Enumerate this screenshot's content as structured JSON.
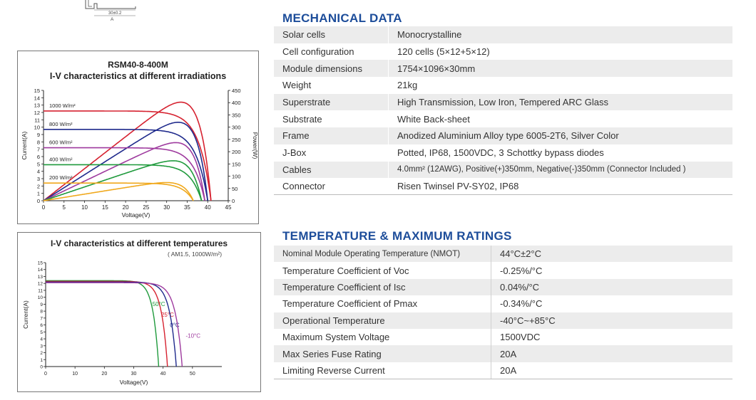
{
  "drawing": {
    "dimension": "30±0.2",
    "label": "A"
  },
  "mechanical": {
    "title": "MECHANICAL DATA",
    "rows": [
      {
        "key": "Solar cells",
        "value": "Monocrystalline"
      },
      {
        "key": "Cell configuration",
        "value": "120 cells (5×12+5×12)"
      },
      {
        "key": "Module dimensions",
        "value": "1754×1096×30mm"
      },
      {
        "key": "Weight",
        "value": "21kg"
      },
      {
        "key": "Superstrate",
        "value": "High Transmission, Low Iron, Tempered ARC Glass"
      },
      {
        "key": "Substrate",
        "value": "White Back-sheet"
      },
      {
        "key": "Frame",
        "value": "Anodized Aluminium Alloy type 6005-2T6, Silver Color"
      },
      {
        "key": "J-Box",
        "value": "Potted, IP68, 1500VDC, 3 Schottky bypass diodes"
      },
      {
        "key": "Cables",
        "value": "4.0mm² (12AWG), Positive(+)350mm, Negative(-)350mm (Connector Included )"
      },
      {
        "key": "Connector",
        "value": "Risen Twinsel PV-SY02, IP68"
      }
    ]
  },
  "temperature": {
    "title": "TEMPERATURE & MAXIMUM RATINGS",
    "rows": [
      {
        "key": "Nominal Module Operating Temperature (NMOT)",
        "value": "44°C±2°C"
      },
      {
        "key": "Temperature Coefficient of Voc",
        "value": "-0.25%/°C"
      },
      {
        "key": "Temperature Coefficient of Isc",
        "value": "0.04%/°C"
      },
      {
        "key": "Temperature Coefficient of Pmax",
        "value": "-0.34%/°C"
      },
      {
        "key": "Operational Temperature",
        "value": "-40°C~+85°C"
      },
      {
        "key": "Maximum System Voltage",
        "value": "1500VDC"
      },
      {
        "key": "Max Series Fuse Rating",
        "value": "20A"
      },
      {
        "key": "Limiting Reverse Current",
        "value": "20A"
      }
    ]
  },
  "chart_data": [
    {
      "type": "line",
      "title": "RSM40-8-400M",
      "subtitle": "I-V characteristics at different irradiations",
      "xlabel": "Voltage(V)",
      "ylabel": "Current(A)",
      "y2label": "Power(W)",
      "xlim": [
        0,
        45
      ],
      "ylim": [
        0,
        15
      ],
      "y2lim": [
        0,
        450
      ],
      "xticks": [
        0,
        5,
        10,
        15,
        20,
        25,
        30,
        35,
        40,
        45
      ],
      "yticks": [
        0,
        1,
        2,
        3,
        4,
        5,
        6,
        7,
        8,
        9,
        10,
        11,
        12,
        13,
        14,
        15
      ],
      "y2ticks": [
        0,
        50,
        100,
        150,
        200,
        250,
        300,
        350,
        400,
        450
      ],
      "series": [
        {
          "name": "1000 W/m²",
          "color": "#d62230",
          "isc": 12.2,
          "voc": 40.8,
          "pmax": 402
        },
        {
          "name": "800 W/m²",
          "color": "#1f2a8c",
          "isc": 9.7,
          "voc": 40.0,
          "pmax": 320
        },
        {
          "name": "600 W/m²",
          "color": "#9e3a9e",
          "isc": 7.2,
          "voc": 39.3,
          "pmax": 237
        },
        {
          "name": "400 W/m²",
          "color": "#1f9a3c",
          "isc": 4.9,
          "voc": 38.5,
          "pmax": 163
        },
        {
          "name": "200 W/m²",
          "color": "#f0a81c",
          "isc": 2.4,
          "voc": 36.5,
          "pmax": 74
        }
      ]
    },
    {
      "type": "line",
      "title": "I-V characteristics at different temperatures",
      "subtitle": "( AM1.5, 1000W/m²)",
      "xlabel": "Voltage(V)",
      "ylabel": "Current(A)",
      "xlim": [
        0,
        60
      ],
      "ylim": [
        0,
        15
      ],
      "xticks": [
        0,
        10,
        20,
        30,
        40,
        50
      ],
      "yticks": [
        0,
        1,
        2,
        3,
        4,
        5,
        6,
        7,
        8,
        9,
        10,
        11,
        12,
        13,
        14,
        15
      ],
      "series": [
        {
          "name": "50°C",
          "color": "#1f9a3c",
          "isc": 12.4,
          "voc": 38.5
        },
        {
          "name": "25°C",
          "color": "#d62230",
          "isc": 12.3,
          "voc": 41.5
        },
        {
          "name": "0°C",
          "color": "#1f2a8c",
          "isc": 12.2,
          "voc": 44.5
        },
        {
          "name": "-10°C",
          "color": "#9e3a9e",
          "isc": 12.1,
          "voc": 46.5
        }
      ]
    }
  ]
}
